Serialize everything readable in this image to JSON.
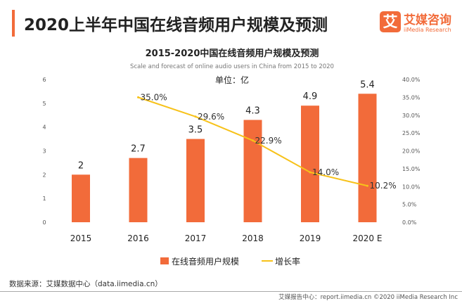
{
  "header": {
    "title": "2020上半年中国在线音频用户规模及预测"
  },
  "logo": {
    "icon_text": "艾",
    "name": "艾媒咨询",
    "subtitle": "iiMedia Research"
  },
  "chart_data": {
    "type": "bar",
    "title": "2015-2020中国在线音频用户规模及预测",
    "subtitle": "Scale and forecast of online audio users in China from 2015 to 2020",
    "unit_label": "单位：亿",
    "categories": [
      "2015",
      "2016",
      "2017",
      "2018",
      "2019",
      "2020 E"
    ],
    "series": [
      {
        "name": "在线音频用户规模",
        "type": "bar",
        "axis": "left",
        "color": "#f26b3a",
        "values": [
          2,
          2.7,
          3.5,
          4.3,
          4.9,
          5.4
        ],
        "labels": [
          "2",
          "2.7",
          "3.5",
          "4.3",
          "4.9",
          "5.4"
        ]
      },
      {
        "name": "增长率",
        "type": "line",
        "axis": "right",
        "color": "#f7c21a",
        "values": [
          null,
          35.0,
          29.6,
          22.9,
          14.0,
          10.2
        ],
        "labels": [
          "",
          "35.0%",
          "29.6%",
          "22.9%",
          "14.0%",
          "10.2%"
        ]
      }
    ],
    "y_left": {
      "range": [
        0,
        6
      ],
      "ticks": [
        "0",
        "1",
        "2",
        "3",
        "4",
        "5",
        "6"
      ]
    },
    "y_right": {
      "range": [
        0,
        40
      ],
      "ticks": [
        "0.0%",
        "5.0%",
        "10.0%",
        "15.0%",
        "20.0%",
        "25.0%",
        "30.0%",
        "35.0%",
        "40.0%"
      ]
    },
    "grid": false,
    "legend": "bottom"
  },
  "footer": {
    "source": "数据来源：艾媒数据中心（data.iimedia.cn）",
    "copyright": "艾媒报告中心：report.iimedia.cn  ©2020  iiMedia Research Inc"
  }
}
